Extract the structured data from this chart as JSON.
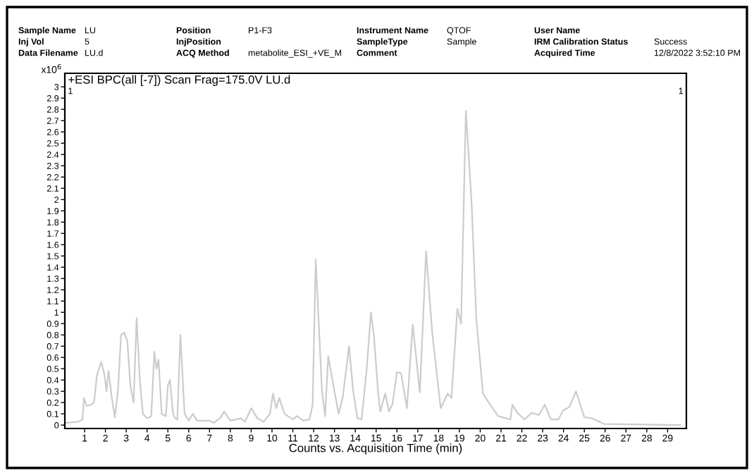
{
  "chart_data": {
    "type": "line",
    "title": "+ESI BPC(all [-7]) Scan Frag=175.0V LU.d",
    "xlabel": "Counts vs. Acquisition Time (min)",
    "ylabel": "x10$^{6}$",
    "annotations": [
      "Sample Name",
      "LU",
      "Position",
      "P1-F3",
      "Instrument Name",
      "QTOF",
      "User Name",
      "Inj Vol",
      "5",
      "InjPosition",
      "SampleType",
      "Sample",
      "IRM Calibration Status",
      "Success",
      "Data Filename",
      "LU.d",
      "ACQ Method",
      "metabolite_ESI_+VE_M",
      "Comment",
      "Acquired Time",
      "12/8/2022 3:52:10 PM",
      "1",
      "1"
    ],
    "x": [
      0.1,
      0.7,
      0.9,
      0.97,
      1.1,
      1.3,
      1.45,
      1.6,
      1.8,
      1.95,
      2.05,
      2.15,
      2.3,
      2.45,
      2.6,
      2.75,
      2.9,
      3.05,
      3.2,
      3.35,
      3.5,
      3.65,
      3.8,
      4.0,
      4.2,
      4.35,
      4.45,
      4.55,
      4.7,
      4.9,
      5.0,
      5.1,
      5.25,
      5.35,
      5.45,
      5.6,
      5.8,
      6.0,
      6.2,
      6.4,
      7.0,
      7.2,
      7.5,
      7.7,
      8.0,
      8.5,
      8.7,
      9.0,
      9.3,
      9.6,
      9.9,
      10.05,
      10.2,
      10.35,
      10.6,
      11.0,
      11.2,
      11.5,
      11.8,
      11.95,
      12.1,
      12.4,
      12.55,
      12.7,
      13.0,
      13.2,
      13.4,
      13.7,
      13.9,
      14.1,
      14.3,
      14.55,
      14.75,
      14.9,
      15.1,
      15.2,
      15.44,
      15.62,
      15.79,
      16.0,
      16.2,
      16.48,
      16.76,
      17.1,
      17.4,
      17.7,
      18.1,
      18.44,
      18.62,
      18.9,
      19.08,
      19.31,
      19.59,
      19.81,
      20.13,
      20.48,
      20.86,
      21.45,
      21.55,
      21.78,
      22.13,
      22.47,
      22.82,
      23.1,
      23.4,
      23.75,
      23.98,
      24.28,
      24.6,
      25.0,
      25.37,
      25.94,
      29.6
    ],
    "series": [
      {
        "color": "#cccccc",
        "values": [
          0.02,
          0.03,
          0.05,
          0.24,
          0.17,
          0.18,
          0.2,
          0.45,
          0.56,
          0.45,
          0.3,
          0.48,
          0.25,
          0.07,
          0.3,
          0.8,
          0.82,
          0.75,
          0.35,
          0.2,
          0.95,
          0.4,
          0.1,
          0.06,
          0.08,
          0.65,
          0.5,
          0.58,
          0.1,
          0.08,
          0.35,
          0.4,
          0.1,
          0.06,
          0.05,
          0.8,
          0.1,
          0.04,
          0.1,
          0.04,
          0.04,
          0.02,
          0.06,
          0.12,
          0.04,
          0.06,
          0.03,
          0.15,
          0.06,
          0.03,
          0.1,
          0.28,
          0.15,
          0.24,
          0.1,
          0.05,
          0.08,
          0.04,
          0.05,
          0.18,
          1.47,
          0.3,
          0.08,
          0.61,
          0.3,
          0.1,
          0.25,
          0.7,
          0.3,
          0.06,
          0.05,
          0.5,
          1.0,
          0.78,
          0.28,
          0.12,
          0.28,
          0.12,
          0.19,
          0.47,
          0.46,
          0.15,
          0.89,
          0.29,
          1.54,
          0.81,
          0.15,
          0.28,
          0.24,
          1.03,
          0.9,
          2.79,
          1.96,
          0.95,
          0.28,
          0.18,
          0.08,
          0.05,
          0.18,
          0.11,
          0.05,
          0.11,
          0.09,
          0.18,
          0.05,
          0.05,
          0.13,
          0.16,
          0.3,
          0.07,
          0.06,
          0.01,
          0.0
        ]
      }
    ],
    "xlim": [
      0.05,
      29.9
    ],
    "ylim": [
      -0.03,
      3.12
    ],
    "xticks": [
      1,
      2,
      3,
      4,
      5,
      6,
      7,
      8,
      9,
      10,
      11,
      12,
      13,
      14,
      15,
      16,
      17,
      18,
      19,
      20,
      21,
      22,
      23,
      24,
      25,
      26,
      27,
      28,
      29
    ],
    "yticks": [
      0,
      0.1,
      0.2,
      0.3,
      0.4,
      0.5,
      0.6,
      0.7,
      0.8,
      0.9,
      1,
      1.1,
      1.2,
      1.3,
      1.4,
      1.5,
      1.6,
      1.7,
      1.8,
      1.9,
      2,
      2.1,
      2.2,
      2.3,
      2.4,
      2.5,
      2.6,
      2.7,
      2.8,
      2.9,
      3
    ],
    "grid": false,
    "legend": false,
    "marker": "none",
    "line_style": "solid"
  }
}
